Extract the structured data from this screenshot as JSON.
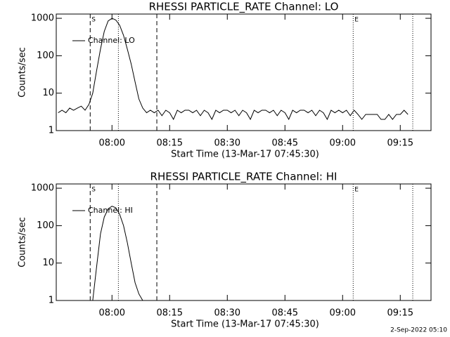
{
  "chart_data": [
    {
      "type": "line",
      "title": "RHESSI PARTICLE_RATE Channel: LO",
      "y_label": "Counts/sec",
      "x_label": "Start Time (13-Mar-17 07:45:30)",
      "xlim": [
        "07:45:30",
        "09:23:00"
      ],
      "xticks": [
        "08:00",
        "08:15",
        "08:30",
        "08:45",
        "09:00",
        "09:15"
      ],
      "ylim": [
        1,
        1300
      ],
      "yticks": [
        1,
        10,
        100,
        1000
      ],
      "log_y": true,
      "legend": "upper left",
      "markers": [
        {
          "x": "07:54:20",
          "style": "dashed",
          "label": "S"
        },
        {
          "x": "08:01:40",
          "style": "dotted"
        },
        {
          "x": "08:11:40",
          "style": "dashed"
        },
        {
          "x": "09:02:45",
          "style": "dotted",
          "label": "E"
        },
        {
          "x": "09:18:15",
          "style": "dotted"
        }
      ],
      "x": [
        "07:46",
        "07:47",
        "07:48",
        "07:49",
        "07:50",
        "07:51",
        "07:52",
        "07:53",
        "07:54",
        "07:55",
        "07:56",
        "07:57",
        "07:58",
        "07:59",
        "08:00",
        "08:01",
        "08:02",
        "08:03",
        "08:04",
        "08:05",
        "08:06",
        "08:07",
        "08:08",
        "08:09",
        "08:10",
        "08:11",
        "08:12",
        "08:13",
        "08:14",
        "08:15",
        "08:16",
        "08:17",
        "08:18",
        "08:19",
        "08:20",
        "08:21",
        "08:22",
        "08:23",
        "08:24",
        "08:25",
        "08:26",
        "08:27",
        "08:28",
        "08:29",
        "08:30",
        "08:31",
        "08:32",
        "08:33",
        "08:34",
        "08:35",
        "08:36",
        "08:37",
        "08:38",
        "08:39",
        "08:40",
        "08:41",
        "08:42",
        "08:43",
        "08:44",
        "08:45",
        "08:46",
        "08:47",
        "08:48",
        "08:49",
        "08:50",
        "08:51",
        "08:52",
        "08:53",
        "08:54",
        "08:55",
        "08:56",
        "08:57",
        "08:58",
        "08:59",
        "09:00",
        "09:01",
        "09:02",
        "09:03",
        "09:04",
        "09:05",
        "09:06",
        "09:07",
        "09:08",
        "09:09",
        "09:10",
        "09:11",
        "09:12",
        "09:13",
        "09:14",
        "09:15",
        "09:16",
        "09:17"
      ],
      "series": [
        {
          "name": "Channel: LO",
          "color": "#000000",
          "values": [
            3,
            3.5,
            3,
            4,
            3.5,
            4,
            4.5,
            3.5,
            5,
            10,
            40,
            150,
            450,
            850,
            1000,
            900,
            650,
            350,
            150,
            60,
            20,
            7,
            4,
            3,
            3.5,
            3,
            3.5,
            2.5,
            3.5,
            3,
            2,
            3.5,
            3,
            3.5,
            3.5,
            3,
            3.5,
            2.5,
            3.5,
            3,
            2,
            3.5,
            3,
            3.5,
            3.5,
            3,
            3.5,
            2.5,
            3.5,
            3,
            2,
            3.5,
            3,
            3.5,
            3.5,
            3,
            3.5,
            2.5,
            3.5,
            3,
            2,
            3.5,
            3,
            3.5,
            3.5,
            3,
            3.5,
            2.5,
            3.5,
            3,
            2,
            3.5,
            3,
            3.5,
            3,
            3.5,
            2.5,
            3.5,
            2.7,
            2,
            2.7,
            2.7,
            2.7,
            2.7,
            2,
            2,
            2.7,
            2,
            2.7,
            2.7,
            3.5,
            2.7
          ]
        }
      ]
    },
    {
      "type": "line",
      "title": "RHESSI PARTICLE_RATE Channel: HI",
      "y_label": "Counts/sec",
      "x_label": "Start Time (13-Mar-17 07:45:30)",
      "xlim": [
        "07:45:30",
        "09:23:00"
      ],
      "xticks": [
        "08:00",
        "08:15",
        "08:30",
        "08:45",
        "09:00",
        "09:15"
      ],
      "ylim": [
        1,
        1300
      ],
      "yticks": [
        1,
        10,
        100,
        1000
      ],
      "log_y": true,
      "legend": "upper left",
      "markers": [
        {
          "x": "07:54:20",
          "style": "dashed",
          "label": "S"
        },
        {
          "x": "08:01:40",
          "style": "dotted"
        },
        {
          "x": "08:11:40",
          "style": "dashed"
        },
        {
          "x": "09:02:45",
          "style": "dotted",
          "label": "E"
        },
        {
          "x": "09:18:15",
          "style": "dotted"
        }
      ],
      "x": [
        "07:55",
        "07:56",
        "07:57",
        "07:58",
        "07:59",
        "08:00",
        "08:01",
        "08:02",
        "08:03",
        "08:04",
        "08:05",
        "08:06",
        "08:07",
        "08:08"
      ],
      "series": [
        {
          "name": "Channel: HI",
          "color": "#000000",
          "values": [
            1,
            8,
            60,
            170,
            280,
            330,
            300,
            200,
            100,
            35,
            10,
            3,
            1.5,
            1
          ]
        }
      ]
    }
  ],
  "footer": "2-Sep-2022 05:10"
}
